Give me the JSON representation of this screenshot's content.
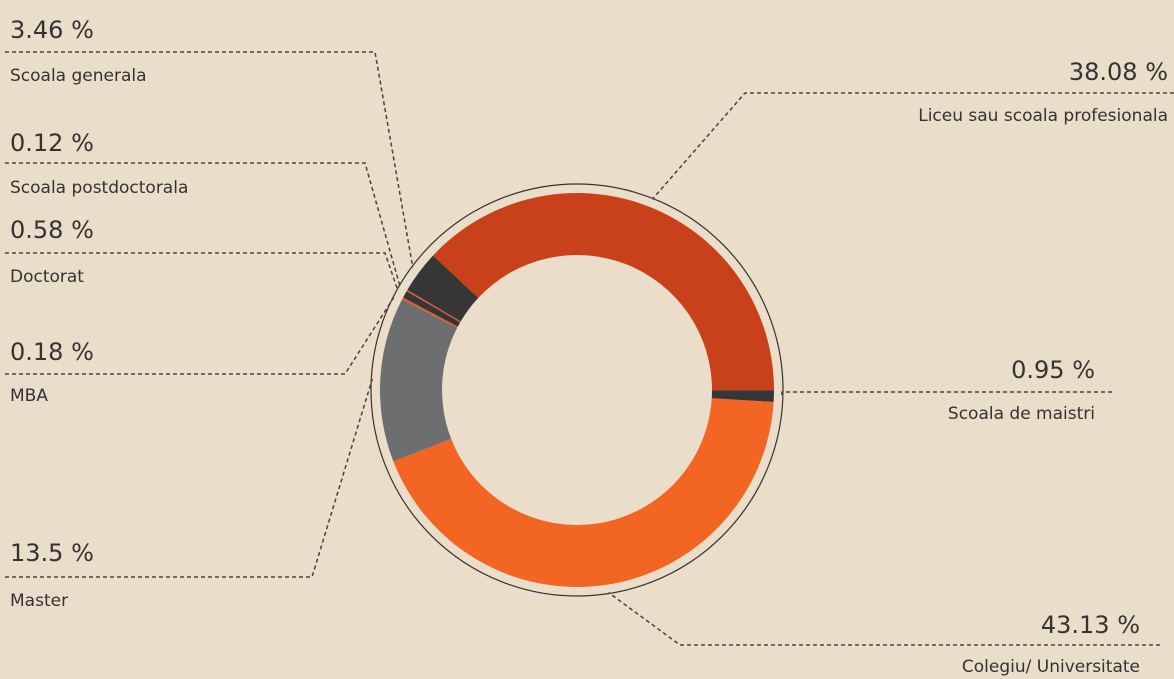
{
  "chart_data": {
    "type": "donut",
    "categories": [
      "Liceu sau scoala profesionala",
      "Scoala de maistri",
      "Colegiu/ Universitate",
      "Master",
      "MBA",
      "Doctorat",
      "Scoala postdoctorala",
      "Scoala generala"
    ],
    "values": [
      38.08,
      0.95,
      43.13,
      13.5,
      0.18,
      0.58,
      0.12,
      3.46
    ],
    "value_labels": [
      "38.08 %",
      "0.95 %",
      "43.13 %",
      "13.5 %",
      "0.18 %",
      "0.58 %",
      "0.12 %",
      "3.46 %"
    ],
    "colors": [
      "#c9411a",
      "#363636",
      "#f26522",
      "#6d6e70",
      "#e8592a",
      "#363636",
      "#e8592a",
      "#363636"
    ]
  }
}
